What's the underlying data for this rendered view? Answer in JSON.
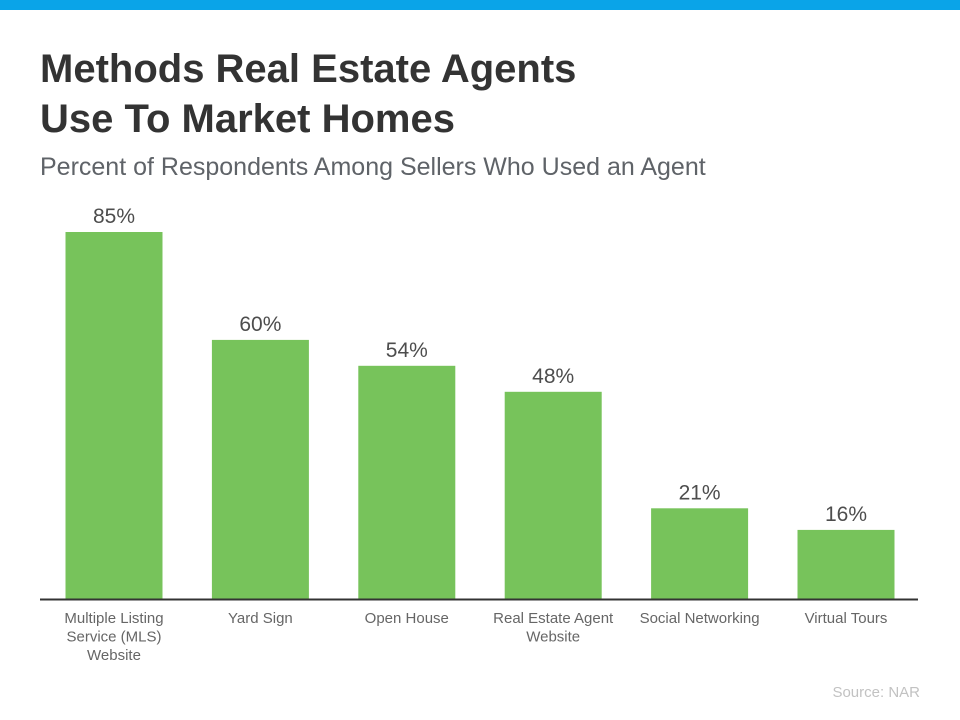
{
  "colors": {
    "top_bar": "#0aa4e8",
    "bar": "#77c35b",
    "axis": "#333333",
    "text": "#333333",
    "value_label": "#4d4d4d",
    "category_label": "#666666"
  },
  "title_lines": [
    "Methods Real Estate Agents",
    "Use To Market Homes"
  ],
  "subtitle": "Percent of Respondents Among Sellers Who Used an Agent",
  "source": "Source: NAR",
  "chart_data": {
    "type": "bar",
    "categories": [
      [
        "Multiple Listing",
        "Service (MLS)",
        "Website"
      ],
      [
        "Yard Sign"
      ],
      [
        "Open House"
      ],
      [
        "Real Estate Agent",
        "Website"
      ],
      [
        "Social Networking"
      ],
      [
        "Virtual Tours"
      ]
    ],
    "values": [
      85,
      60,
      54,
      48,
      21,
      16
    ],
    "value_labels": [
      "85%",
      "60%",
      "54%",
      "48%",
      "21%",
      "16%"
    ],
    "ylim": [
      0,
      100
    ],
    "grid": false,
    "legend": "none"
  }
}
